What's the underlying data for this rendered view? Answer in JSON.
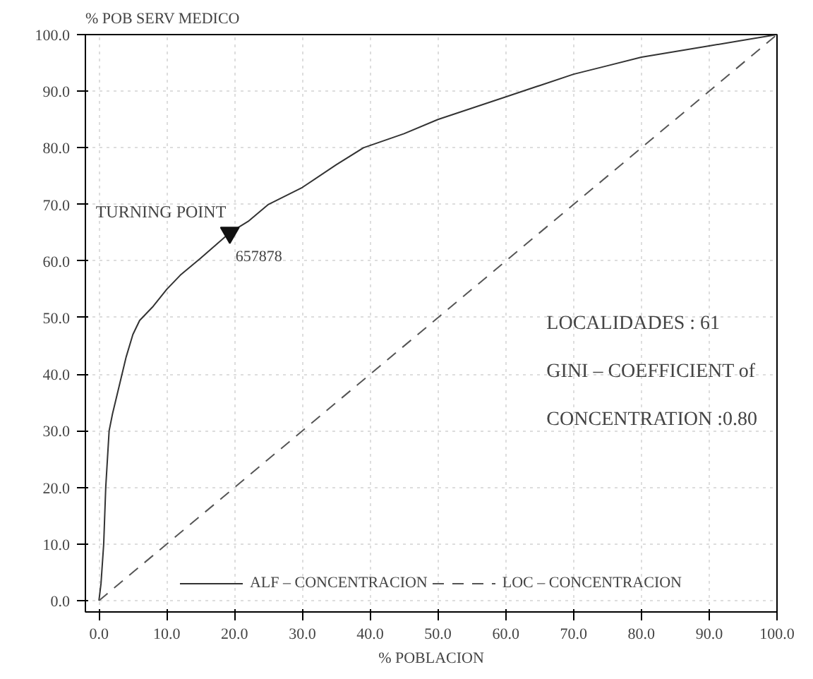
{
  "chart_data": {
    "type": "line",
    "xlabel": "% POBLACION",
    "ylabel": "% POB SERV MEDICO",
    "xlim": [
      -2,
      100
    ],
    "ylim": [
      -2,
      100
    ],
    "xticks": [
      {
        "value": 0,
        "label": "0.0"
      },
      {
        "value": 10,
        "label": "10.0"
      },
      {
        "value": 20,
        "label": "20.0"
      },
      {
        "value": 30,
        "label": "30.0"
      },
      {
        "value": 40,
        "label": "40.0"
      },
      {
        "value": 50,
        "label": "50.0"
      },
      {
        "value": 60,
        "label": "60.0"
      },
      {
        "value": 70,
        "label": "70.0"
      },
      {
        "value": 80,
        "label": "80.0"
      },
      {
        "value": 90,
        "label": "90.0"
      },
      {
        "value": 100,
        "label": "100.0"
      }
    ],
    "yticks": [
      {
        "value": 0,
        "label": "0.0"
      },
      {
        "value": 10,
        "label": "10.0"
      },
      {
        "value": 20,
        "label": "20.0"
      },
      {
        "value": 30,
        "label": "30.0"
      },
      {
        "value": 40,
        "label": "40.0"
      },
      {
        "value": 50,
        "label": "50.0"
      },
      {
        "value": 60,
        "label": "60.0"
      },
      {
        "value": 70,
        "label": "70.0"
      },
      {
        "value": 80,
        "label": "80.0"
      },
      {
        "value": 90,
        "label": "90.0"
      },
      {
        "value": 100,
        "label": "100.0"
      }
    ],
    "series": [
      {
        "name": "ALF – CONCENTRACION",
        "color": "#333333",
        "line_style": "solid",
        "x": [
          0,
          0.3,
          0.7,
          1,
          1.5,
          2,
          3,
          4,
          5,
          6,
          8,
          10,
          12,
          15,
          19.3,
          22,
          25,
          30,
          35,
          39,
          45,
          50,
          55,
          60,
          65,
          70,
          75,
          80,
          85,
          90,
          95,
          100
        ],
        "values": [
          0,
          3,
          10,
          20,
          30,
          33,
          38,
          43,
          47,
          49.5,
          52,
          55,
          57.5,
          60.5,
          65,
          67,
          70,
          73,
          77,
          80,
          82.5,
          85,
          87,
          89,
          91,
          93,
          94.5,
          96,
          97,
          98,
          99,
          100
        ]
      },
      {
        "name": "LOC – CONCENTRACION",
        "color": "#555555",
        "line_style": "dashed",
        "x": [
          0,
          100
        ],
        "values": [
          0,
          100
        ]
      },
      {
        "type": "scatter",
        "marker": "triangle",
        "color": "#111111",
        "x": [
          19.3
        ],
        "values": [
          65
        ]
      }
    ],
    "annotations": [
      {
        "text": "TURNING POINT",
        "x": 19.3,
        "y": 65
      },
      {
        "text": "657878",
        "x": 19.3,
        "y": 65
      },
      "LOCALIDADES :      61",
      "GINI – COEFFICIENT of",
      "CONCENTRATION :0.80"
    ],
    "legend": "bottom",
    "grid": true
  }
}
